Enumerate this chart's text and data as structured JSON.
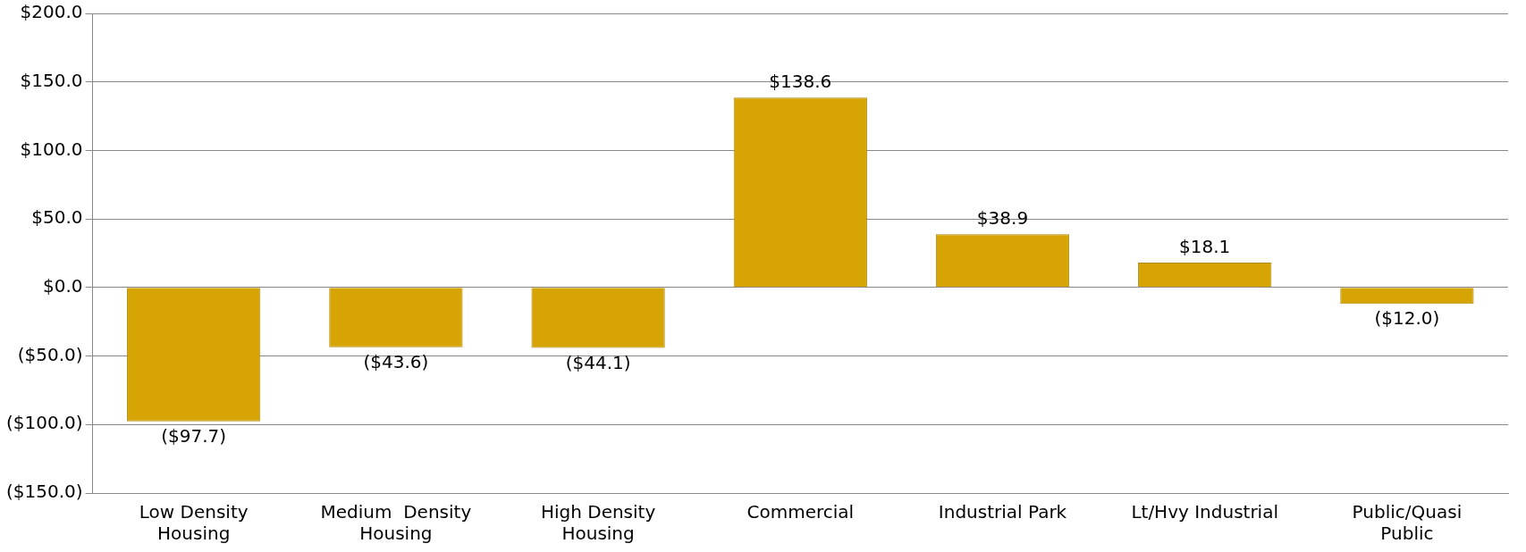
{
  "chart_data": {
    "type": "bar",
    "categories": [
      "Low Density Housing",
      "Medium  Density Housing",
      "High Density Housing",
      "Commercial",
      "Industrial Park",
      "Lt/Hvy Industrial",
      "Public/Quasi Public"
    ],
    "values": [
      -97.7,
      -43.6,
      -44.1,
      138.6,
      38.9,
      18.1,
      -12.0
    ],
    "value_labels": [
      "($97.7)",
      "($43.6)",
      "($44.1)",
      "$138.6",
      "$38.9",
      "$18.1",
      "($12.0)"
    ],
    "color": "#d6a404",
    "ylim": [
      -150,
      200
    ],
    "yticks": [
      {
        "value": -150,
        "label": "($150.0)"
      },
      {
        "value": -100,
        "label": "($100.0)"
      },
      {
        "value": -50,
        "label": "($50.0)"
      },
      {
        "value": 0,
        "label": "$0.0"
      },
      {
        "value": 50,
        "label": "$50.0"
      },
      {
        "value": 100,
        "label": "$100.0"
      },
      {
        "value": 150,
        "label": "$150.0"
      },
      {
        "value": 200,
        "label": "$200.0"
      }
    ],
    "grid": "y",
    "legend": false
  }
}
